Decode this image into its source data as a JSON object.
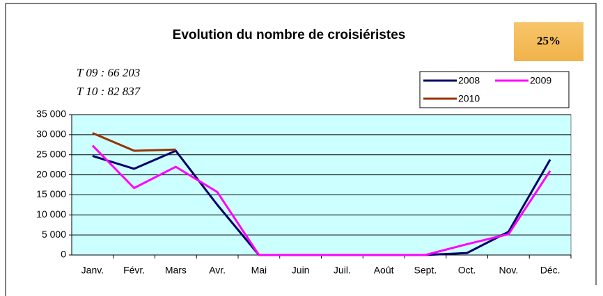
{
  "chart_data": {
    "type": "line",
    "title": "Evolution du nombre de croisiéristes",
    "badge": "25%",
    "annotations": [
      "T 09 : 66 203",
      "T 10 : 82 837"
    ],
    "categories": [
      "Janv.",
      "Févr.",
      "Mars",
      "Avr.",
      "Mai",
      "Juin",
      "Juil.",
      "Août",
      "Sept.",
      "Oct.",
      "Nov.",
      "Déc."
    ],
    "series": [
      {
        "name": "2008",
        "color": "#000066",
        "values": [
          24700,
          21500,
          26000,
          12500,
          0,
          0,
          0,
          0,
          0,
          500,
          5800,
          23800
        ]
      },
      {
        "name": "2009",
        "color": "#ff00ff",
        "values": [
          27300,
          16700,
          22000,
          15700,
          0,
          0,
          0,
          0,
          0,
          2700,
          5200,
          21000
        ]
      },
      {
        "name": "2010",
        "color": "#993300",
        "values": [
          30400,
          26000,
          26300,
          null,
          null,
          null,
          null,
          null,
          null,
          null,
          null,
          null
        ]
      }
    ],
    "ylim": [
      0,
      35000
    ],
    "yticks": [
      {
        "value": 0,
        "label": "0"
      },
      {
        "value": 5000,
        "label": "5 000"
      },
      {
        "value": 10000,
        "label": "10 000"
      },
      {
        "value": 15000,
        "label": "15 000"
      },
      {
        "value": 20000,
        "label": "20 000"
      },
      {
        "value": 25000,
        "label": "25 000"
      },
      {
        "value": 30000,
        "label": "30 000"
      },
      {
        "value": 35000,
        "label": "35 000"
      }
    ],
    "grid": true,
    "legend": "top-right",
    "plot_background": "#ccffff"
  }
}
